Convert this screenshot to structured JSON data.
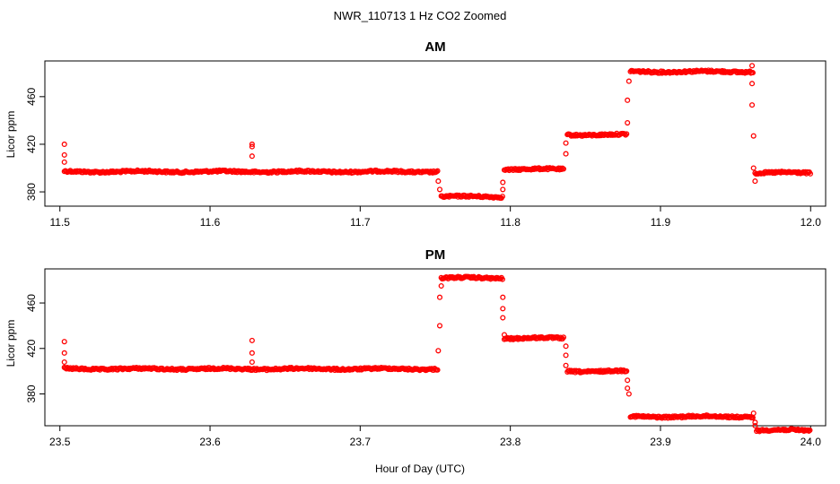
{
  "figure": {
    "title": "NWR_110713  1 Hz CO2 Zoomed",
    "xlabel": "Hour of Day (UTC)"
  },
  "colors": {
    "points": "#ff0000",
    "axes": "#000000",
    "background": "#ffffff"
  },
  "chart_data": [
    {
      "type": "scatter",
      "title": "AM",
      "xlabel": "",
      "ylabel": "Licor ppm",
      "xlim": [
        11.49,
        12.01
      ],
      "ylim": [
        368,
        490
      ],
      "xticks": [
        11.5,
        11.6,
        11.7,
        11.8,
        11.9,
        12.0
      ],
      "xtick_labels": [
        "11.5",
        "11.6",
        "11.7",
        "11.8",
        "11.9",
        "12.0"
      ],
      "yticks": [
        380,
        420,
        460
      ],
      "ytick_labels": [
        "380",
        "420",
        "460"
      ],
      "grid": false,
      "plateaus": [
        {
          "x0": 11.503,
          "x1": 11.752,
          "y": 397
        },
        {
          "x0": 11.754,
          "x1": 11.795,
          "y": 376
        },
        {
          "x0": 11.796,
          "x1": 11.836,
          "y": 399
        },
        {
          "x0": 11.838,
          "x1": 11.878,
          "y": 428
        },
        {
          "x0": 11.88,
          "x1": 11.962,
          "y": 481
        },
        {
          "x0": 11.963,
          "x1": 12.0,
          "y": 396
        }
      ],
      "spikes": [
        {
          "x": 11.503,
          "y": 420
        },
        {
          "x": 11.503,
          "y": 411
        },
        {
          "x": 11.503,
          "y": 405
        },
        {
          "x": 11.628,
          "y": 420
        },
        {
          "x": 11.628,
          "y": 418
        },
        {
          "x": 11.628,
          "y": 410
        },
        {
          "x": 11.752,
          "y": 389
        },
        {
          "x": 11.753,
          "y": 382
        },
        {
          "x": 11.795,
          "y": 388
        },
        {
          "x": 11.795,
          "y": 382
        },
        {
          "x": 11.837,
          "y": 412
        },
        {
          "x": 11.837,
          "y": 421
        },
        {
          "x": 11.878,
          "y": 438
        },
        {
          "x": 11.878,
          "y": 457
        },
        {
          "x": 11.879,
          "y": 473
        },
        {
          "x": 11.961,
          "y": 486
        },
        {
          "x": 11.961,
          "y": 471
        },
        {
          "x": 11.961,
          "y": 453
        },
        {
          "x": 11.962,
          "y": 427
        },
        {
          "x": 11.962,
          "y": 400
        },
        {
          "x": 11.963,
          "y": 389
        }
      ]
    },
    {
      "type": "scatter",
      "title": "PM",
      "xlabel": "",
      "ylabel": "Licor ppm",
      "xlim": [
        23.49,
        24.01
      ],
      "ylim": [
        352,
        490
      ],
      "xticks": [
        23.5,
        23.6,
        23.7,
        23.8,
        23.9,
        24.0
      ],
      "xtick_labels": [
        "23.5",
        "23.6",
        "23.7",
        "23.8",
        "23.9",
        "24.0"
      ],
      "yticks": [
        380,
        420,
        460
      ],
      "ytick_labels": [
        "380",
        "420",
        "460"
      ],
      "grid": false,
      "plateaus": [
        {
          "x0": 23.503,
          "x1": 23.752,
          "y": 402
        },
        {
          "x0": 23.754,
          "x1": 23.795,
          "y": 482
        },
        {
          "x0": 23.796,
          "x1": 23.836,
          "y": 429
        },
        {
          "x0": 23.838,
          "x1": 23.878,
          "y": 400
        },
        {
          "x0": 23.88,
          "x1": 23.962,
          "y": 360
        },
        {
          "x0": 23.964,
          "x1": 24.0,
          "y": 348
        }
      ],
      "spikes": [
        {
          "x": 23.503,
          "y": 426
        },
        {
          "x": 23.503,
          "y": 416
        },
        {
          "x": 23.503,
          "y": 408
        },
        {
          "x": 23.628,
          "y": 427
        },
        {
          "x": 23.628,
          "y": 416
        },
        {
          "x": 23.628,
          "y": 408
        },
        {
          "x": 23.752,
          "y": 418
        },
        {
          "x": 23.753,
          "y": 440
        },
        {
          "x": 23.753,
          "y": 465
        },
        {
          "x": 23.754,
          "y": 475
        },
        {
          "x": 23.795,
          "y": 465
        },
        {
          "x": 23.795,
          "y": 455
        },
        {
          "x": 23.795,
          "y": 447
        },
        {
          "x": 23.796,
          "y": 432
        },
        {
          "x": 23.837,
          "y": 422
        },
        {
          "x": 23.837,
          "y": 414
        },
        {
          "x": 23.837,
          "y": 405
        },
        {
          "x": 23.878,
          "y": 392
        },
        {
          "x": 23.878,
          "y": 385
        },
        {
          "x": 23.879,
          "y": 380
        },
        {
          "x": 23.962,
          "y": 363
        },
        {
          "x": 23.963,
          "y": 355
        },
        {
          "x": 23.963,
          "y": 352
        }
      ]
    }
  ]
}
